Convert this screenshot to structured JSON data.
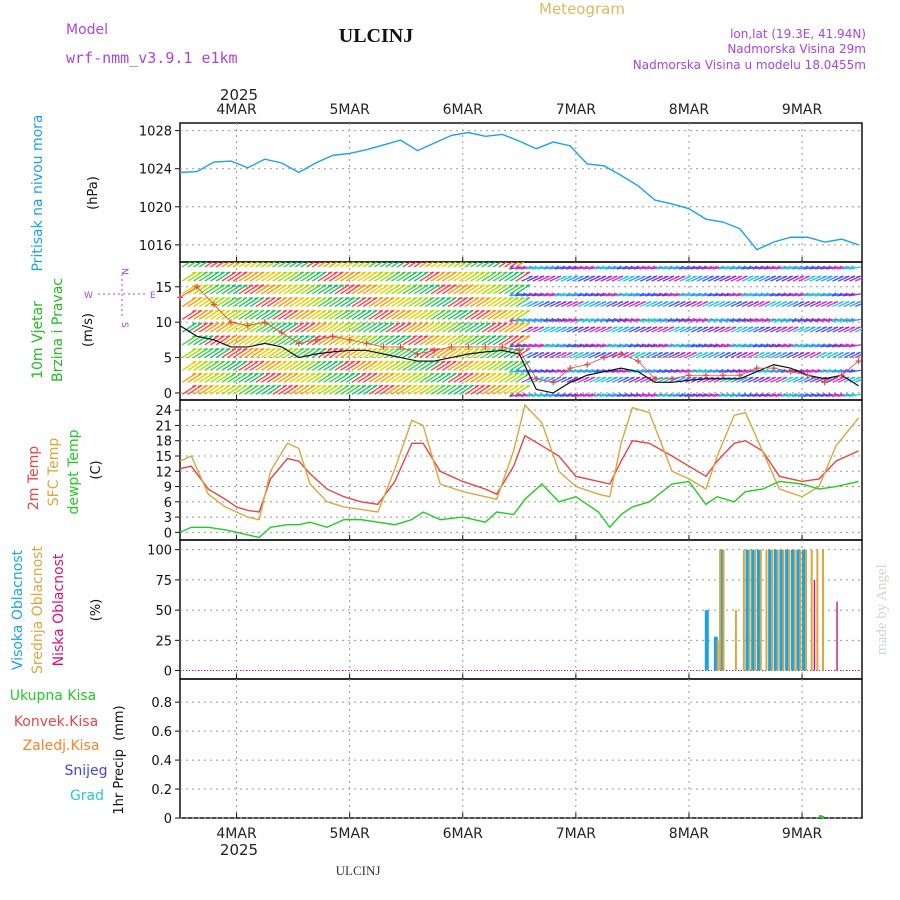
{
  "header": {
    "model_label": "Model",
    "model_name": "wrf-nmm_v3.9.1 e1km",
    "station": "ULCINJ",
    "meteogram": "Meteogram",
    "lonlat": "lon,lat (19.3E, 41.94N)",
    "elev": "Nadmorska Visina 29m",
    "elev_model": "Nadmorska Visina u modelu 18.0455m",
    "footer_station": "ULCINJ",
    "watermark": "made by Angel"
  },
  "axis": {
    "year": "2025",
    "days": [
      "4MAR",
      "5MAR",
      "6MAR",
      "7MAR",
      "8MAR",
      "9MAR"
    ]
  },
  "compass": {
    "n": "N",
    "s": "S",
    "w": "W",
    "e": "E"
  },
  "colors": {
    "pressure": "#1ca3e6",
    "wind_label": "#22bb22",
    "wind_label2": "#22bb22",
    "t2m": "#e84545",
    "tsfc": "#dba640",
    "dewpt": "#22cc22",
    "cloud_high": "#1ca3e6",
    "cloud_mid": "#dba640",
    "cloud_low": "#d6107a",
    "precip_total": "#22cc22",
    "precip_conv": "#e84545",
    "precip_frozen": "#ff7f2a",
    "precip_snow": "#4444dd",
    "precip_grad": "#22cccc",
    "grid": "#999999",
    "gust": "#e84545",
    "compass": "#aa44dd"
  },
  "chart_data": [
    {
      "type": "line",
      "panel": "pressure",
      "ylabel": "Pritisak na nivou mora",
      "unit": "(hPa)",
      "yticks": [
        1016,
        1020,
        1024,
        1028
      ],
      "ylim": [
        1014.2,
        1028.8
      ],
      "x_days": [
        3.5,
        3.65,
        3.8,
        3.95,
        4.1,
        4.25,
        4.4,
        4.55,
        4.7,
        4.85,
        5.0,
        5.15,
        5.3,
        5.45,
        5.6,
        5.75,
        5.9,
        6.05,
        6.2,
        6.35,
        6.5,
        6.65,
        6.8,
        6.95,
        7.1,
        7.25,
        7.4,
        7.55,
        7.7,
        7.85,
        8.0,
        8.15,
        8.3,
        8.45,
        8.6,
        8.75,
        8.9,
        9.05,
        9.2,
        9.35,
        9.5
      ],
      "series": [
        {
          "name": "Pritisak na nivou mora",
          "values": [
            1023.6,
            1023.7,
            1024.7,
            1024.8,
            1024.1,
            1025.0,
            1024.6,
            1023.6,
            1024.6,
            1025.4,
            1025.6,
            1026.0,
            1026.5,
            1027.0,
            1025.9,
            1026.7,
            1027.5,
            1027.8,
            1027.4,
            1027.6,
            1026.9,
            1026.1,
            1026.8,
            1026.4,
            1024.5,
            1024.3,
            1023.3,
            1022.2,
            1020.7,
            1020.3,
            1019.8,
            1018.7,
            1018.4,
            1017.7,
            1015.5,
            1016.3,
            1016.8,
            1016.8,
            1016.3,
            1016.6,
            1016.0
          ]
        }
      ]
    },
    {
      "type": "line",
      "panel": "wind",
      "ylabel": "10m Vjetar",
      "ylabel2": "Brzina i Pravac",
      "unit": "(m/s)",
      "yticks": [
        0,
        5,
        10,
        15
      ],
      "ylim": [
        -1,
        18.5
      ],
      "x_days": [
        3.5,
        3.65,
        3.8,
        3.95,
        4.1,
        4.25,
        4.4,
        4.55,
        4.7,
        4.85,
        5.0,
        5.15,
        5.3,
        5.45,
        5.6,
        5.75,
        5.9,
        6.05,
        6.2,
        6.35,
        6.5,
        6.65,
        6.8,
        6.95,
        7.1,
        7.25,
        7.4,
        7.55,
        7.7,
        7.85,
        8.0,
        8.15,
        8.3,
        8.45,
        8.6,
        8.75,
        8.9,
        9.05,
        9.2,
        9.35,
        9.5
      ],
      "series": [
        {
          "name": "speed",
          "values": [
            9.5,
            8.0,
            7.5,
            6.5,
            6.5,
            7.0,
            6.5,
            5.0,
            5.5,
            5.8,
            6.0,
            6.0,
            5.5,
            5.0,
            4.5,
            4.5,
            5.0,
            5.5,
            5.8,
            6.0,
            5.5,
            0.5,
            0.0,
            1.5,
            2.5,
            3.0,
            3.5,
            3.0,
            1.5,
            1.5,
            1.8,
            2.0,
            2.0,
            2.0,
            3.0,
            4.0,
            3.5,
            2.5,
            2.0,
            2.5,
            1.0
          ]
        },
        {
          "name": "gust",
          "values": [
            13.5,
            15.0,
            12.5,
            10.0,
            9.5,
            10.0,
            8.5,
            7.0,
            7.5,
            8.0,
            7.5,
            7.0,
            6.5,
            6.5,
            5.5,
            6.0,
            6.5,
            6.5,
            6.5,
            6.5,
            6.0,
            2.0,
            1.5,
            3.5,
            4.0,
            5.0,
            5.5,
            4.5,
            2.0,
            2.0,
            2.5,
            2.5,
            2.5,
            2.5,
            3.5,
            3.5,
            3.0,
            2.5,
            1.5,
            2.5,
            4.5
          ]
        }
      ]
    },
    {
      "type": "line",
      "panel": "temperature",
      "ylabel": "2m Temp",
      "ylabel2": "SFC Temp",
      "ylabel3": "dewpt Temp",
      "unit": "(C)",
      "yticks": [
        0,
        3,
        6,
        9,
        12,
        15,
        18,
        21,
        24
      ],
      "ylim": [
        -1.5,
        26
      ],
      "x_days": [
        3.5,
        3.6,
        3.75,
        3.9,
        4.0,
        4.1,
        4.2,
        4.3,
        4.45,
        4.55,
        4.65,
        4.8,
        4.95,
        5.1,
        5.25,
        5.4,
        5.55,
        5.65,
        5.8,
        6.0,
        6.2,
        6.3,
        6.45,
        6.55,
        6.7,
        6.85,
        7.0,
        7.2,
        7.3,
        7.4,
        7.5,
        7.65,
        7.85,
        8.0,
        8.15,
        8.25,
        8.4,
        8.5,
        8.65,
        8.8,
        9.0,
        9.15,
        9.3,
        9.5
      ],
      "series": [
        {
          "name": "2m Temp",
          "values": [
            12.5,
            13.0,
            8.5,
            6.5,
            5.0,
            4.3,
            4.0,
            10.5,
            14.5,
            14.0,
            11.5,
            8.5,
            7.0,
            6.0,
            5.5,
            10.0,
            17.5,
            17.5,
            12.0,
            10.0,
            8.5,
            7.5,
            13.0,
            19.0,
            17.0,
            15.0,
            11.0,
            10.0,
            9.5,
            14.0,
            18.0,
            17.5,
            15.0,
            13.0,
            11.0,
            14.0,
            17.5,
            18.0,
            16.0,
            11.0,
            10.0,
            10.5,
            14.0,
            16.0
          ]
        },
        {
          "name": "SFC Temp",
          "values": [
            14.0,
            15.0,
            7.5,
            5.0,
            4.0,
            3.0,
            2.5,
            12.0,
            17.5,
            16.5,
            9.5,
            6.0,
            5.0,
            4.5,
            4.0,
            12.5,
            22.0,
            21.0,
            9.5,
            8.0,
            7.0,
            6.5,
            16.0,
            25.0,
            21.5,
            12.0,
            9.0,
            7.5,
            7.0,
            17.5,
            24.5,
            23.5,
            12.0,
            10.5,
            8.5,
            15.0,
            23.0,
            23.5,
            16.0,
            8.5,
            7.0,
            9.0,
            17.0,
            22.5
          ]
        },
        {
          "name": "dewpt Temp",
          "values": [
            0.0,
            1.0,
            1.0,
            0.5,
            0.0,
            -0.5,
            -1.0,
            1.0,
            1.5,
            1.5,
            2.0,
            1.0,
            2.5,
            2.5,
            2.0,
            1.5,
            2.5,
            4.0,
            2.5,
            3.0,
            2.0,
            4.0,
            3.5,
            6.5,
            9.5,
            6.0,
            7.0,
            4.0,
            1.0,
            3.5,
            5.0,
            6.0,
            9.5,
            10.0,
            5.5,
            7.0,
            6.0,
            8.0,
            8.5,
            10.0,
            9.5,
            8.5,
            9.0,
            10.0
          ]
        }
      ]
    },
    {
      "type": "bar",
      "panel": "clouds",
      "ylabel": "Visoka Oblacnost",
      "ylabel2": "Srednja Oblacnost",
      "ylabel3": "Niska Oblacnost",
      "unit": "(%)",
      "yticks": [
        0,
        25,
        50,
        75,
        100
      ],
      "ylim": [
        -7,
        108
      ],
      "x_days": [
        8.14,
        8.22,
        8.24,
        8.27,
        8.32,
        8.38,
        8.45,
        8.5,
        8.55,
        8.6,
        8.65,
        8.7,
        8.75,
        8.8,
        8.85,
        8.9,
        8.95,
        9.0,
        9.05,
        9.1,
        9.15,
        9.25
      ],
      "series": [
        {
          "name": "Visoka Oblacnost",
          "values": [
            50,
            28,
            0,
            100,
            0,
            0,
            0,
            100,
            100,
            100,
            0,
            100,
            100,
            100,
            100,
            100,
            100,
            100,
            0,
            0,
            0,
            0
          ]
        },
        {
          "name": "Srednja Oblacnost",
          "values": [
            0,
            25,
            100,
            100,
            0,
            50,
            100,
            100,
            100,
            100,
            100,
            100,
            100,
            100,
            100,
            100,
            100,
            100,
            100,
            100,
            100,
            0
          ]
        },
        {
          "name": "Niska Oblacnost",
          "values": [
            0,
            0,
            0,
            0,
            0,
            0,
            0,
            0,
            0,
            0,
            0,
            0,
            0,
            0,
            0,
            0,
            0,
            0,
            75,
            0,
            0,
            57
          ]
        }
      ]
    },
    {
      "type": "bar",
      "panel": "precip",
      "ylabel": "1hr Precip",
      "unit": "(mm)",
      "legend": [
        "Ukupna Kisa",
        "Konvek.Kisa",
        "Zaledj.Kisa",
        "Snijeg",
        "Grad"
      ],
      "yticks": [
        0,
        0.2,
        0.4,
        0.6,
        0.8
      ],
      "ylim": [
        0,
        0.96
      ],
      "x_days": [
        9.15,
        9.17
      ],
      "series": [
        {
          "name": "Ukupna Kisa",
          "values": [
            0.02,
            0.015
          ]
        }
      ]
    }
  ]
}
